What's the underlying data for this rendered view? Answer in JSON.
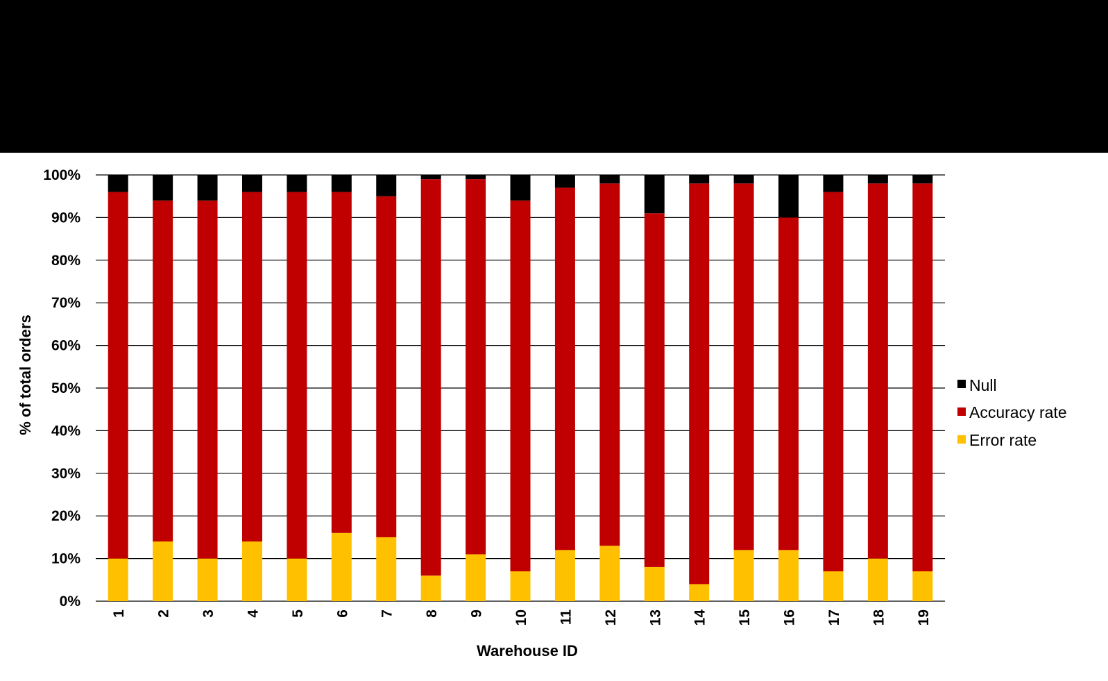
{
  "chart_data": {
    "type": "bar",
    "stacked": true,
    "normalized_percent": true,
    "xlabel": "Warehouse ID",
    "ylabel": "% of total orders",
    "ylim": [
      0,
      100
    ],
    "yticks": [
      "0%",
      "10%",
      "20%",
      "30%",
      "40%",
      "50%",
      "60%",
      "70%",
      "80%",
      "90%",
      "100%"
    ],
    "categories": [
      "1",
      "2",
      "3",
      "4",
      "5",
      "6",
      "7",
      "8",
      "9",
      "10",
      "11",
      "12",
      "13",
      "14",
      "15",
      "16",
      "17",
      "18",
      "19"
    ],
    "series": [
      {
        "name": "Error rate",
        "color": "#FFC000",
        "values": [
          10,
          14,
          10,
          14,
          10,
          16,
          15,
          6,
          11,
          7,
          12,
          13,
          8,
          4,
          12,
          12,
          7,
          10,
          7
        ]
      },
      {
        "name": "Accuracy rate",
        "color": "#C00000",
        "values": [
          86,
          80,
          84,
          82,
          86,
          80,
          80,
          93,
          88,
          87,
          85,
          85,
          83,
          94,
          86,
          78,
          89,
          88,
          91
        ]
      },
      {
        "name": "Null",
        "color": "#000000",
        "values": [
          4,
          6,
          6,
          4,
          4,
          4,
          5,
          1,
          1,
          6,
          3,
          2,
          9,
          2,
          2,
          10,
          4,
          2,
          2
        ]
      }
    ],
    "legend": {
      "placement": "right",
      "order": [
        "Null",
        "Accuracy rate",
        "Error rate"
      ]
    },
    "grid": true
  }
}
